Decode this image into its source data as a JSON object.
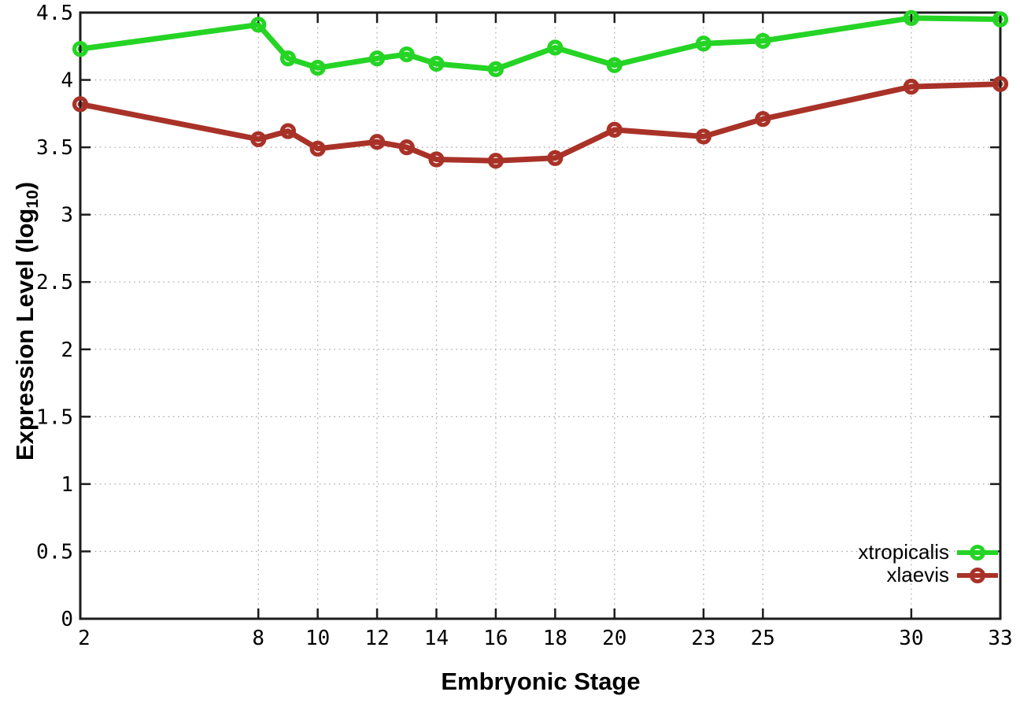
{
  "chart_data": {
    "type": "line",
    "title": "",
    "xlabel": "Embryonic Stage",
    "ylabel": "Expression Level (log10)",
    "ylabel_parts": {
      "main": "Expression Level (log",
      "sub": "10",
      "close": ")"
    },
    "xlim": [
      2,
      33
    ],
    "ylim": [
      0,
      4.5
    ],
    "x_ticks": [
      2,
      8,
      10,
      12,
      14,
      16,
      18,
      20,
      23,
      25,
      30,
      33
    ],
    "y_ticks": [
      0,
      0.5,
      1,
      1.5,
      2,
      2.5,
      3,
      3.5,
      4,
      4.5
    ],
    "grid": true,
    "grid_style": "dotted",
    "legend_position": "bottom-right",
    "x": [
      2,
      8,
      9,
      10,
      12,
      13,
      14,
      16,
      18,
      20,
      23,
      25,
      30,
      33
    ],
    "series": [
      {
        "name": "xtropicalis",
        "color": "#25d425",
        "marker": "open-circle",
        "values": [
          4.23,
          4.41,
          4.16,
          4.09,
          4.16,
          4.19,
          4.12,
          4.08,
          4.24,
          4.11,
          4.27,
          4.29,
          4.46,
          4.45
        ]
      },
      {
        "name": "xlaevis",
        "color": "#a93228",
        "marker": "open-circle",
        "values": [
          3.82,
          3.56,
          3.62,
          3.49,
          3.54,
          3.5,
          3.41,
          3.4,
          3.42,
          3.63,
          3.58,
          3.71,
          3.95,
          3.97
        ]
      }
    ],
    "colors": {
      "background": "#ffffff",
      "border": "#1c1c1c",
      "grid": "#ababab",
      "tick_text": "#000000"
    }
  }
}
